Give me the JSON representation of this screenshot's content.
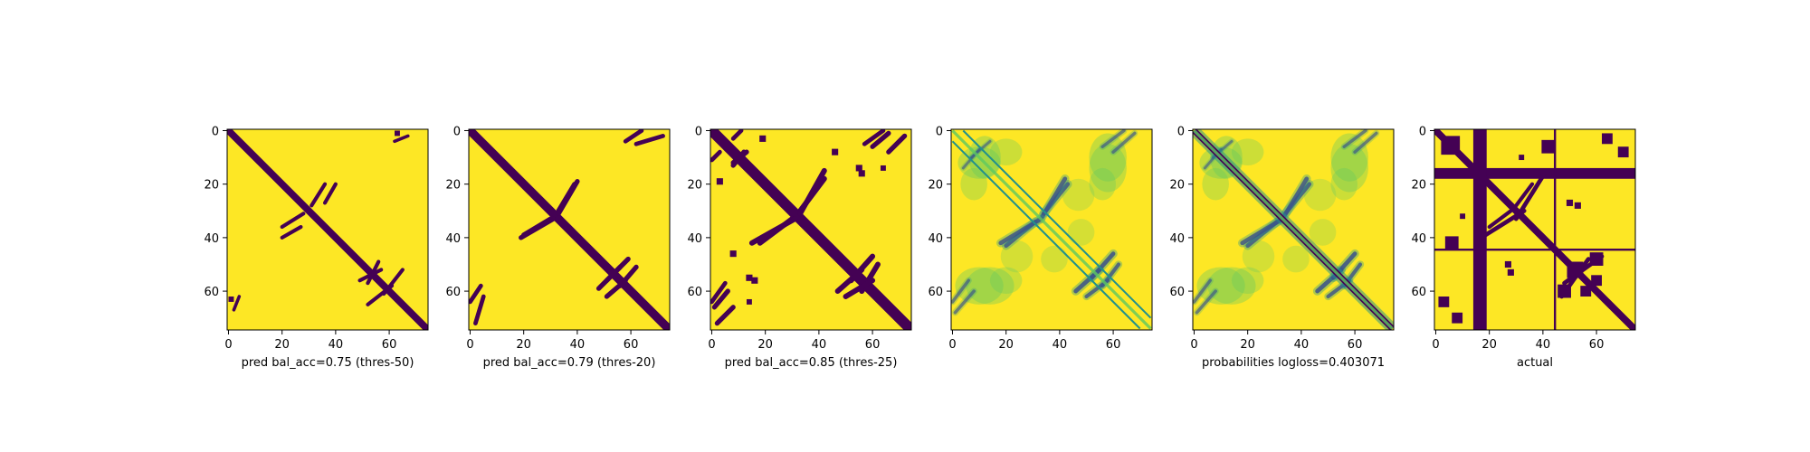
{
  "figure": {
    "background": "#ffffff"
  },
  "colors": {
    "low": "#440154",
    "high": "#fde725",
    "viridis": [
      "#440154",
      "#3b528b",
      "#21918c",
      "#5ec962",
      "#fde725"
    ]
  },
  "chart_data": [
    {
      "type": "heatmap",
      "xlabel": "pred bal_acc=0.75 (thres-50)",
      "size": 75,
      "xticks": [
        0,
        20,
        40,
        60
      ],
      "yticks": [
        0,
        20,
        40,
        60
      ],
      "mode": "binary",
      "width": 1.3,
      "features": [
        {
          "kind": "seg",
          "x1": 20,
          "y1": 36,
          "x2": 28,
          "y2": 31,
          "w": 0.7
        },
        {
          "kind": "seg",
          "x1": 36,
          "y1": 27,
          "x2": 40,
          "y2": 20,
          "w": 0.7
        },
        {
          "kind": "seg",
          "x1": 52,
          "y1": 57,
          "x2": 56,
          "y2": 49,
          "w": 0.7
        },
        {
          "kind": "seg",
          "x1": 58,
          "y1": 61,
          "x2": 65,
          "y2": 52,
          "w": 0.7
        },
        {
          "kind": "seg",
          "x1": 2,
          "y1": 67,
          "x2": 4,
          "y2": 62,
          "w": 0.6
        },
        {
          "kind": "dot",
          "x": 63,
          "y": 1,
          "r": 1
        }
      ]
    },
    {
      "type": "heatmap",
      "xlabel": "pred bal_acc=0.79 (thres-20)",
      "size": 75,
      "xticks": [
        0,
        20,
        40,
        60
      ],
      "yticks": [
        0,
        20,
        40,
        60
      ],
      "mode": "binary",
      "width": 1.6,
      "features": [
        {
          "kind": "seg",
          "x1": 20,
          "y1": 39,
          "x2": 30,
          "y2": 33,
          "w": 0.9
        },
        {
          "kind": "seg",
          "x1": 33,
          "y1": 31,
          "x2": 40,
          "y2": 19,
          "w": 0.9
        },
        {
          "kind": "seg",
          "x1": 48,
          "y1": 59,
          "x2": 56,
          "y2": 51,
          "w": 0.9
        },
        {
          "kind": "seg",
          "x1": 56,
          "y1": 58,
          "x2": 62,
          "y2": 51,
          "w": 0.9
        },
        {
          "kind": "seg",
          "x1": 58,
          "y1": 4,
          "x2": 64,
          "y2": 0,
          "w": 0.8
        },
        {
          "kind": "seg",
          "x1": 2,
          "y1": 72,
          "x2": 5,
          "y2": 62,
          "w": 0.8
        }
      ]
    },
    {
      "type": "heatmap",
      "xlabel": "pred bal_acc=0.85 (thres-25)",
      "size": 75,
      "xticks": [
        0,
        20,
        40,
        60
      ],
      "yticks": [
        0,
        20,
        40,
        60
      ],
      "mode": "binary",
      "width": 2.0,
      "features": [
        {
          "kind": "seg",
          "x1": 18,
          "y1": 42,
          "x2": 30,
          "y2": 33,
          "w": 1.0
        },
        {
          "kind": "seg",
          "x1": 33,
          "y1": 31,
          "x2": 42,
          "y2": 15,
          "w": 1.0
        },
        {
          "kind": "seg",
          "x1": 47,
          "y1": 60,
          "x2": 56,
          "y2": 52,
          "w": 1.0
        },
        {
          "kind": "seg",
          "x1": 56,
          "y1": 60,
          "x2": 62,
          "y2": 50,
          "w": 1.0
        },
        {
          "kind": "seg",
          "x1": 8,
          "y1": 12,
          "x2": 13,
          "y2": 8,
          "w": 0.9
        },
        {
          "kind": "seg",
          "x1": 1,
          "y1": 66,
          "x2": 6,
          "y2": 60,
          "w": 0.9
        },
        {
          "kind": "seg",
          "x1": 2,
          "y1": 72,
          "x2": 8,
          "y2": 66,
          "w": 0.9
        },
        {
          "kind": "seg",
          "x1": 57,
          "y1": 5,
          "x2": 64,
          "y2": 0,
          "w": 0.8
        },
        {
          "kind": "seg",
          "x1": 8,
          "y1": 3,
          "x2": 11,
          "y2": 0,
          "w": 0.8
        },
        {
          "kind": "dot",
          "x": 3,
          "y": 19,
          "r": 1.2
        },
        {
          "kind": "dot",
          "x": 55,
          "y": 14,
          "r": 1.2
        },
        {
          "kind": "dot",
          "x": 8,
          "y": 46,
          "r": 1.2
        },
        {
          "kind": "dot",
          "x": 16,
          "y": 56,
          "r": 1.2
        },
        {
          "kind": "dot",
          "x": 64,
          "y": 14,
          "r": 1.0
        }
      ]
    },
    {
      "type": "heatmap",
      "xlabel": "",
      "size": 75,
      "xticks": [
        0,
        20,
        40,
        60
      ],
      "yticks": [
        0,
        20,
        40,
        60
      ],
      "mode": "prob",
      "offsets": [
        {
          "d": 4,
          "w": 0.7
        },
        {
          "d": -4,
          "w": 0.7
        }
      ],
      "blobs": [
        {
          "x": 10,
          "y": 12,
          "rx": 8,
          "ry": 6,
          "a": 0.35
        },
        {
          "x": 20,
          "y": 8,
          "rx": 6,
          "ry": 5,
          "a": 0.3
        },
        {
          "x": 58,
          "y": 14,
          "rx": 7,
          "ry": 9,
          "a": 0.35
        },
        {
          "x": 10,
          "y": 58,
          "rx": 9,
          "ry": 7,
          "a": 0.35
        },
        {
          "x": 20,
          "y": 56,
          "rx": 6,
          "ry": 5,
          "a": 0.3
        },
        {
          "x": 47,
          "y": 24,
          "rx": 6,
          "ry": 6,
          "a": 0.25
        },
        {
          "x": 38,
          "y": 48,
          "rx": 5,
          "ry": 5,
          "a": 0.25
        }
      ],
      "arcs": [
        {
          "x1": 20,
          "y1": 43,
          "x2": 31,
          "y2": 34,
          "w": 1.6,
          "a": 0.55
        },
        {
          "x1": 33,
          "y1": 33,
          "x2": 42,
          "y2": 18,
          "w": 1.6,
          "a": 0.55
        },
        {
          "x1": 46,
          "y1": 60,
          "x2": 55,
          "y2": 52,
          "w": 1.6,
          "a": 0.6
        },
        {
          "x1": 56,
          "y1": 58,
          "x2": 62,
          "y2": 50,
          "w": 1.4,
          "a": 0.55
        },
        {
          "x1": 56,
          "y1": 6,
          "x2": 64,
          "y2": 0,
          "w": 1.2,
          "a": 0.4
        },
        {
          "x1": 1,
          "y1": 68,
          "x2": 8,
          "y2": 60,
          "w": 1.2,
          "a": 0.4
        },
        {
          "x1": 7,
          "y1": 10,
          "x2": 14,
          "y2": 4,
          "w": 1.0,
          "a": 0.35
        }
      ]
    },
    {
      "type": "heatmap",
      "xlabel": "probabilities logloss=0.403071",
      "size": 75,
      "xticks": [
        0,
        20,
        40,
        60
      ],
      "yticks": [
        0,
        20,
        40,
        60
      ],
      "mode": "prob",
      "offsets": [
        {
          "d": 0,
          "w": 2.2
        }
      ],
      "blobs": [
        {
          "x": 10,
          "y": 12,
          "rx": 8,
          "ry": 6,
          "a": 0.35
        },
        {
          "x": 20,
          "y": 8,
          "rx": 6,
          "ry": 5,
          "a": 0.3
        },
        {
          "x": 58,
          "y": 14,
          "rx": 7,
          "ry": 9,
          "a": 0.35
        },
        {
          "x": 10,
          "y": 58,
          "rx": 9,
          "ry": 7,
          "a": 0.35
        },
        {
          "x": 20,
          "y": 56,
          "rx": 6,
          "ry": 5,
          "a": 0.3
        },
        {
          "x": 47,
          "y": 24,
          "rx": 6,
          "ry": 6,
          "a": 0.25
        },
        {
          "x": 38,
          "y": 48,
          "rx": 5,
          "ry": 5,
          "a": 0.25
        }
      ],
      "arcs": [
        {
          "x1": 20,
          "y1": 43,
          "x2": 31,
          "y2": 34,
          "w": 1.6,
          "a": 0.55
        },
        {
          "x1": 33,
          "y1": 33,
          "x2": 42,
          "y2": 18,
          "w": 1.6,
          "a": 0.55
        },
        {
          "x1": 46,
          "y1": 60,
          "x2": 55,
          "y2": 52,
          "w": 1.6,
          "a": 0.6
        },
        {
          "x1": 56,
          "y1": 58,
          "x2": 62,
          "y2": 50,
          "w": 1.4,
          "a": 0.55
        },
        {
          "x1": 56,
          "y1": 6,
          "x2": 64,
          "y2": 0,
          "w": 1.2,
          "a": 0.4
        },
        {
          "x1": 1,
          "y1": 68,
          "x2": 8,
          "y2": 60,
          "w": 1.2,
          "a": 0.4
        },
        {
          "x1": 7,
          "y1": 10,
          "x2": 14,
          "y2": 4,
          "w": 1.0,
          "a": 0.35
        }
      ]
    },
    {
      "type": "heatmap",
      "xlabel": "actual",
      "size": 75,
      "xticks": [
        0,
        20,
        40,
        60
      ],
      "yticks": [
        0,
        20,
        40,
        60
      ],
      "mode": "binary",
      "width": 1.3,
      "bands": [
        {
          "orient": "h",
          "from": 14.5,
          "to": 18.5
        },
        {
          "orient": "v",
          "from": 14.5,
          "to": 19.5
        },
        {
          "orient": "h",
          "from": 44.6,
          "to": 45.4
        },
        {
          "orient": "v",
          "from": 44.6,
          "to": 45.4
        }
      ],
      "features": [
        {
          "kind": "seg",
          "x1": 20,
          "y1": 36,
          "x2": 28,
          "y2": 30,
          "w": 0.7
        },
        {
          "kind": "seg",
          "x1": 30,
          "y1": 33,
          "x2": 40,
          "y2": 17,
          "w": 0.8
        },
        {
          "kind": "seg",
          "x1": 47,
          "y1": 62,
          "x2": 57,
          "y2": 48,
          "w": 0.8
        },
        {
          "kind": "dot",
          "x": 5,
          "y": 6,
          "r": 3
        },
        {
          "kind": "dot",
          "x": 3,
          "y": 64,
          "r": 2
        },
        {
          "kind": "dot",
          "x": 8,
          "y": 70,
          "r": 2
        },
        {
          "kind": "dot",
          "x": 42,
          "y": 6,
          "r": 2.5
        },
        {
          "kind": "dot",
          "x": 52,
          "y": 52,
          "r": 3
        },
        {
          "kind": "dot",
          "x": 48,
          "y": 60,
          "r": 2.5
        },
        {
          "kind": "dot",
          "x": 60,
          "y": 56,
          "r": 2
        },
        {
          "kind": "dot",
          "x": 27,
          "y": 50,
          "r": 1.2
        },
        {
          "kind": "dot",
          "x": 53,
          "y": 28,
          "r": 1.2
        },
        {
          "kind": "dot",
          "x": 10,
          "y": 32,
          "r": 1
        }
      ]
    }
  ]
}
